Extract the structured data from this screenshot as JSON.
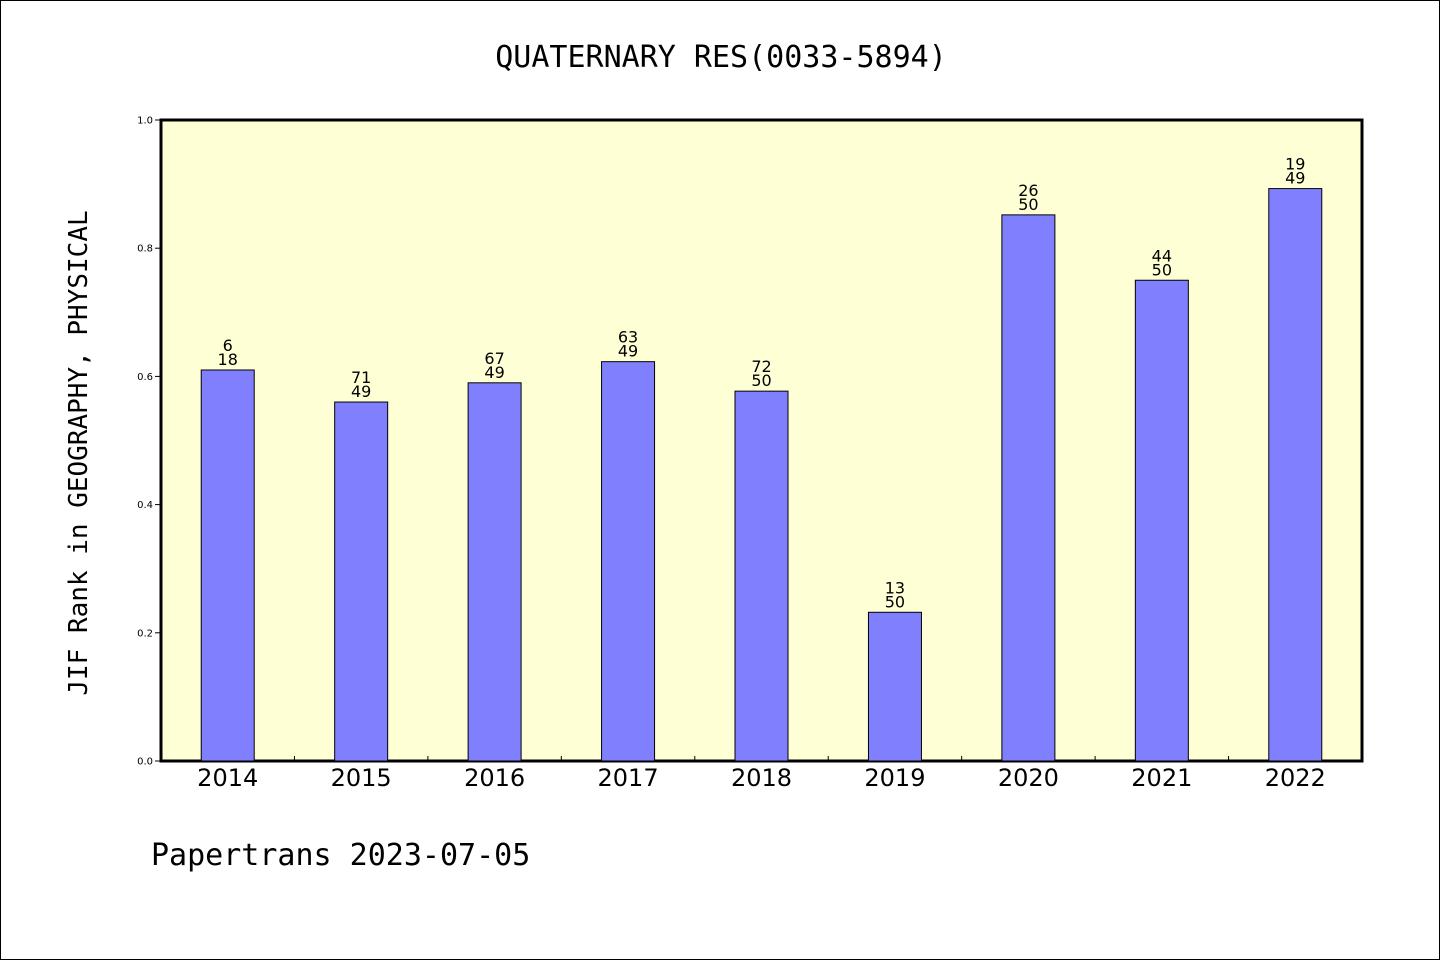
{
  "footer": "Papertrans 2023-07-05",
  "colors": {
    "plot_background": "#ffffd6",
    "bar_fill": "#8080ff",
    "bar_stroke": "#000000"
  },
  "chart_data": {
    "type": "bar",
    "title": "QUATERNARY RES(0033-5894)",
    "xlabel": "",
    "ylabel": "JIF Rank in GEOGRAPHY, PHYSICAL",
    "ylim": [
      0,
      1.0
    ],
    "yticks": [
      "0.0",
      "0.2",
      "0.4",
      "0.6",
      "0.8",
      "1.0"
    ],
    "grid": false,
    "categories": [
      "2014",
      "2015",
      "2016",
      "2017",
      "2018",
      "2019",
      "2020",
      "2021",
      "2022"
    ],
    "values": [
      0.61,
      0.56,
      0.59,
      0.623,
      0.577,
      0.232,
      0.852,
      0.75,
      0.893
    ],
    "bar_labels": [
      [
        "6",
        "18"
      ],
      [
        "71",
        "49"
      ],
      [
        "67",
        "49"
      ],
      [
        "63",
        "49"
      ],
      [
        "72",
        "50"
      ],
      [
        "13",
        "50"
      ],
      [
        "26",
        "50"
      ],
      [
        "44",
        "50"
      ],
      [
        "19",
        "49"
      ]
    ]
  }
}
